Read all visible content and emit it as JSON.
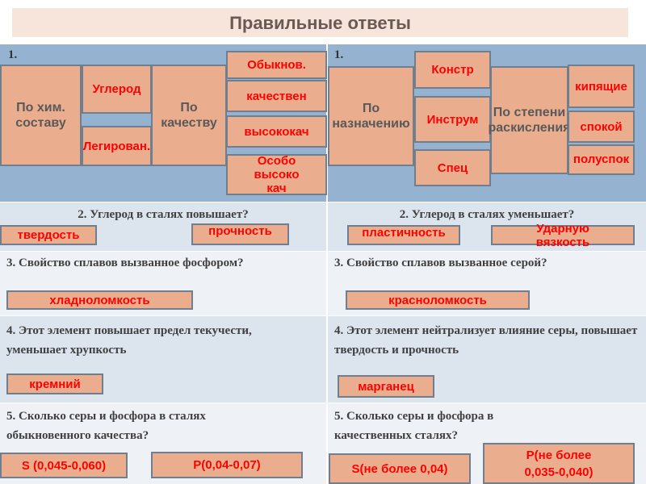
{
  "title": "Правильные ответы",
  "q1": {
    "left": {
      "num": "1.",
      "cat1": "По хим. составу",
      "cat1_items": [
        "Углерод",
        "Легирован."
      ],
      "cat2": "По качеству",
      "cat2_items": [
        "Обыкнов.",
        "качествен",
        "высококач",
        "Особо высоко кач"
      ]
    },
    "right": {
      "num": "1.",
      "cat1": "По назначению",
      "cat1_items": [
        "Констр",
        "Инструм",
        "Спец"
      ],
      "cat2": "По степени раскисления",
      "cat2_items": [
        "кипящие",
        "спокой",
        "полуспок"
      ]
    }
  },
  "q2": {
    "left": {
      "question": "2. Углерод в сталях повышает?",
      "answers": [
        "твердость",
        "прочность"
      ]
    },
    "right": {
      "question": "2. Углерод в сталях уменьшает?",
      "answers": [
        "пластичность",
        "Ударную вязкость"
      ]
    }
  },
  "q3": {
    "left": {
      "question": "3. Свойство сплавов вызванное фосфором?",
      "answer": "хладноломкость"
    },
    "right": {
      "question": "3. Свойство сплавов вызванное серой?",
      "answer": "красноломкость"
    }
  },
  "q4": {
    "left": {
      "question": "4. Этот элемент повышает предел текучести, уменьшает хрупкость",
      "answer": "кремний"
    },
    "right": {
      "question": "4. Этот элемент нейтрализует влияние серы, повышает твердость и прочность",
      "answer": "марганец"
    }
  },
  "q5": {
    "left": {
      "question": "5. Сколько серы и фосфора в сталях обыкновенного качества?",
      "answers": [
        "S (0,045-0,060)",
        "P(0,04-0,07)"
      ]
    },
    "right": {
      "question": "5. Сколько серы и фосфора в качественных сталях?",
      "answers": [
        "S(не более 0,04)",
        "P(не более 0,035-0,040)"
      ]
    }
  },
  "colors": {
    "answer_text": "#ff0000",
    "box_fill": "#eaae8f",
    "row1_bg": "#95b3d0"
  }
}
